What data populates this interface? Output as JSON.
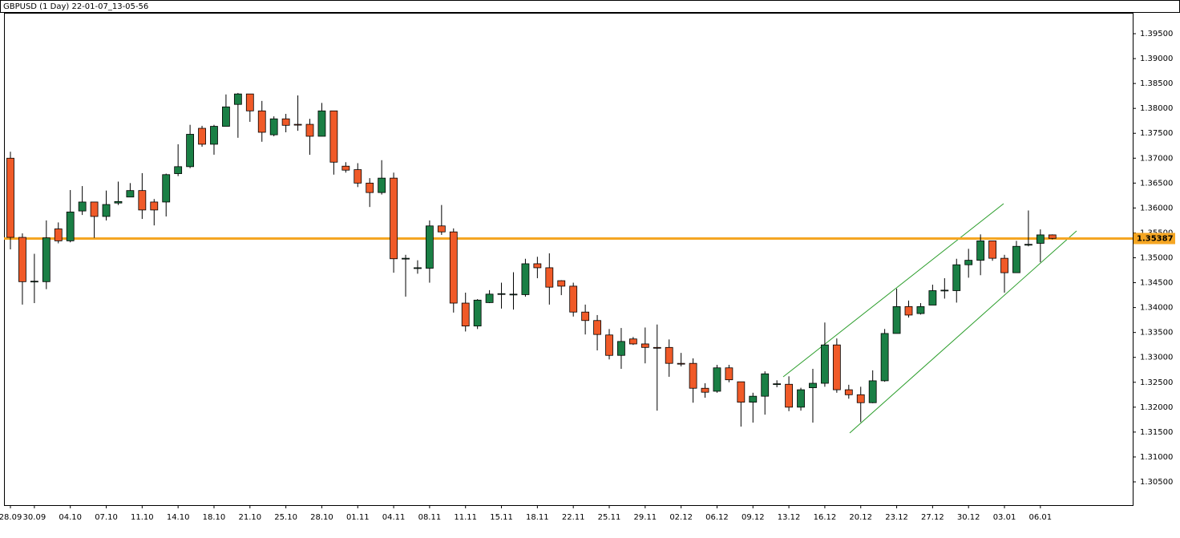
{
  "chart_data": {
    "type": "candlestick",
    "title": "GBPUSD (1 Day) 22-01-07_13-05-56",
    "categories": [
      "28.09",
      null,
      "30.09",
      null,
      null,
      "04.10",
      null,
      null,
      "07.10",
      null,
      null,
      "11.10",
      null,
      null,
      "14.10",
      null,
      null,
      "18.10",
      null,
      null,
      "21.10",
      null,
      null,
      "25.10",
      null,
      null,
      "28.10",
      null,
      null,
      "01.11",
      null,
      null,
      "04.11",
      null,
      null,
      "08.11",
      null,
      null,
      "11.11",
      null,
      null,
      "15.11",
      null,
      null,
      "18.11",
      null,
      null,
      "22.11",
      null,
      null,
      "25.11",
      null,
      null,
      "29.11",
      null,
      null,
      "02.12",
      null,
      null,
      "06.12",
      null,
      null,
      "09.12",
      null,
      null,
      "13.12",
      null,
      null,
      "16.12",
      null,
      null,
      "20.12",
      null,
      null,
      "23.12",
      null,
      null,
      "27.12",
      null,
      null,
      "30.12",
      null,
      null,
      "03.01",
      null,
      null,
      "06.01",
      null
    ],
    "open": [
      1.37,
      1.3541,
      1.3452,
      1.3452,
      1.3558,
      1.3534,
      1.3594,
      1.3612,
      1.3583,
      1.361,
      1.3622,
      1.3635,
      1.3612,
      1.3612,
      1.3669,
      1.3683,
      1.376,
      1.3728,
      1.3764,
      1.3808,
      1.3829,
      1.3795,
      1.3747,
      1.3779,
      1.3768,
      1.3768,
      1.3744,
      1.3795,
      1.3684,
      1.3677,
      1.365,
      1.3631,
      1.366,
      1.3498,
      1.3479,
      1.3479,
      1.3564,
      1.3552,
      1.3409,
      1.3363,
      1.341,
      1.3427,
      1.3426,
      1.3426,
      1.3488,
      1.348,
      1.3454,
      1.3443,
      1.3391,
      1.3374,
      1.3345,
      1.3304,
      1.3337,
      1.3327,
      1.332,
      1.332,
      1.3288,
      1.3288,
      1.3238,
      1.3232,
      1.3279,
      1.3251,
      1.321,
      1.3222,
      1.3246,
      1.3246,
      1.32,
      1.3239,
      1.3248,
      1.3325,
      1.3235,
      1.3225,
      1.3209,
      1.3253,
      1.3348,
      1.3402,
      1.3388,
      1.3405,
      1.3434,
      1.3434,
      1.3486,
      1.3495,
      1.3534,
      1.3499,
      1.347,
      1.3526,
      1.3529,
      1.3546
    ],
    "high": [
      1.3713,
      1.3549,
      1.3508,
      1.3575,
      1.3571,
      1.3636,
      1.3644,
      1.3612,
      1.3635,
      1.3653,
      1.365,
      1.367,
      1.3618,
      1.3669,
      1.3728,
      1.3767,
      1.3765,
      1.3767,
      1.3828,
      1.3831,
      1.3829,
      1.3815,
      1.3784,
      1.3789,
      1.3826,
      1.3779,
      1.3811,
      1.3795,
      1.3692,
      1.369,
      1.366,
      1.3696,
      1.3671,
      1.3506,
      1.3495,
      1.3575,
      1.3606,
      1.3559,
      1.343,
      1.3417,
      1.3435,
      1.345,
      1.3471,
      1.3498,
      1.3502,
      1.3509,
      1.3455,
      1.345,
      1.3406,
      1.3385,
      1.3357,
      1.3359,
      1.3341,
      1.336,
      1.3366,
      1.3336,
      1.3309,
      1.3298,
      1.3248,
      1.3285,
      1.3285,
      1.3251,
      1.3229,
      1.3272,
      1.3254,
      1.3262,
      1.3239,
      1.3277,
      1.337,
      1.3338,
      1.3245,
      1.3241,
      1.3274,
      1.3357,
      1.3438,
      1.3414,
      1.3409,
      1.3446,
      1.3459,
      1.3498,
      1.3518,
      1.3547,
      1.3534,
      1.3506,
      1.3534,
      1.3595,
      1.3557,
      1.3547
    ],
    "low": [
      1.3517,
      1.3406,
      1.3409,
      1.3437,
      1.3529,
      1.3531,
      1.3586,
      1.354,
      1.3575,
      1.3606,
      1.3622,
      1.3578,
      1.3565,
      1.3583,
      1.3664,
      1.368,
      1.3723,
      1.3707,
      1.3764,
      1.3741,
      1.3773,
      1.3733,
      1.3744,
      1.3752,
      1.3755,
      1.3707,
      1.3744,
      1.3667,
      1.3671,
      1.3642,
      1.3602,
      1.3627,
      1.347,
      1.3422,
      1.3468,
      1.345,
      1.3546,
      1.339,
      1.3352,
      1.3357,
      1.3409,
      1.3398,
      1.3396,
      1.3422,
      1.3459,
      1.3406,
      1.3425,
      1.3382,
      1.3346,
      1.3314,
      1.3296,
      1.3277,
      1.3325,
      1.3288,
      1.3193,
      1.3261,
      1.3282,
      1.3209,
      1.3219,
      1.3229,
      1.325,
      1.3161,
      1.3169,
      1.3185,
      1.324,
      1.3192,
      1.3193,
      1.3169,
      1.3241,
      1.3229,
      1.3217,
      1.317,
      1.3208,
      1.3251,
      1.3348,
      1.338,
      1.3386,
      1.3405,
      1.3418,
      1.341,
      1.346,
      1.3465,
      1.3494,
      1.343,
      1.347,
      1.3523,
      1.3491,
      1.3537
    ],
    "close": [
      1.3541,
      1.3452,
      1.3453,
      1.354,
      1.3534,
      1.3592,
      1.3612,
      1.3583,
      1.3607,
      1.3613,
      1.3635,
      1.3596,
      1.3596,
      1.3667,
      1.3683,
      1.3748,
      1.3728,
      1.3764,
      1.3803,
      1.3829,
      1.3795,
      1.3752,
      1.3779,
      1.3766,
      1.3767,
      1.3744,
      1.3795,
      1.3692,
      1.3676,
      1.365,
      1.3631,
      1.366,
      1.3498,
      1.3499,
      1.348,
      1.3564,
      1.3552,
      1.3409,
      1.3363,
      1.3415,
      1.3427,
      1.3428,
      1.3427,
      1.3488,
      1.348,
      1.3441,
      1.3443,
      1.3391,
      1.3374,
      1.3346,
      1.3304,
      1.3332,
      1.3327,
      1.332,
      1.3319,
      1.3288,
      1.3287,
      1.3238,
      1.323,
      1.3279,
      1.3255,
      1.321,
      1.3222,
      1.3267,
      1.3247,
      1.32,
      1.3235,
      1.3248,
      1.3325,
      1.3235,
      1.3225,
      1.3209,
      1.3253,
      1.3348,
      1.3402,
      1.3385,
      1.3402,
      1.3434,
      1.3435,
      1.3486,
      1.3495,
      1.3534,
      1.3499,
      1.347,
      1.3523,
      1.3527,
      1.3546,
      1.3539
    ],
    "up_color": "#1a7f45",
    "down_color": "#f05a28",
    "price_line": 1.35387,
    "price_line_color": "#f5a623",
    "ylim": [
      1.30033,
      1.39919
    ],
    "yticks": [
      {
        "value": 1.305,
        "label": "1.30500"
      },
      {
        "value": 1.31,
        "label": "1.31000"
      },
      {
        "value": 1.315,
        "label": "1.31500"
      },
      {
        "value": 1.32,
        "label": "1.32000"
      },
      {
        "value": 1.325,
        "label": "1.32500"
      },
      {
        "value": 1.33,
        "label": "1.33000"
      },
      {
        "value": 1.335,
        "label": "1.33500"
      },
      {
        "value": 1.34,
        "label": "1.34000"
      },
      {
        "value": 1.345,
        "label": "1.34500"
      },
      {
        "value": 1.35,
        "label": "1.35000"
      },
      {
        "value": 1.355,
        "label": "1.35500"
      },
      {
        "value": 1.36,
        "label": "1.36000"
      },
      {
        "value": 1.365,
        "label": "1.36500"
      },
      {
        "value": 1.37,
        "label": "1.37000"
      },
      {
        "value": 1.375,
        "label": "1.37500"
      },
      {
        "value": 1.38,
        "label": "1.38000"
      },
      {
        "value": 1.385,
        "label": "1.38500"
      },
      {
        "value": 1.39,
        "label": "1.39000"
      },
      {
        "value": 1.395,
        "label": "1.39500"
      }
    ],
    "grid": false
  }
}
